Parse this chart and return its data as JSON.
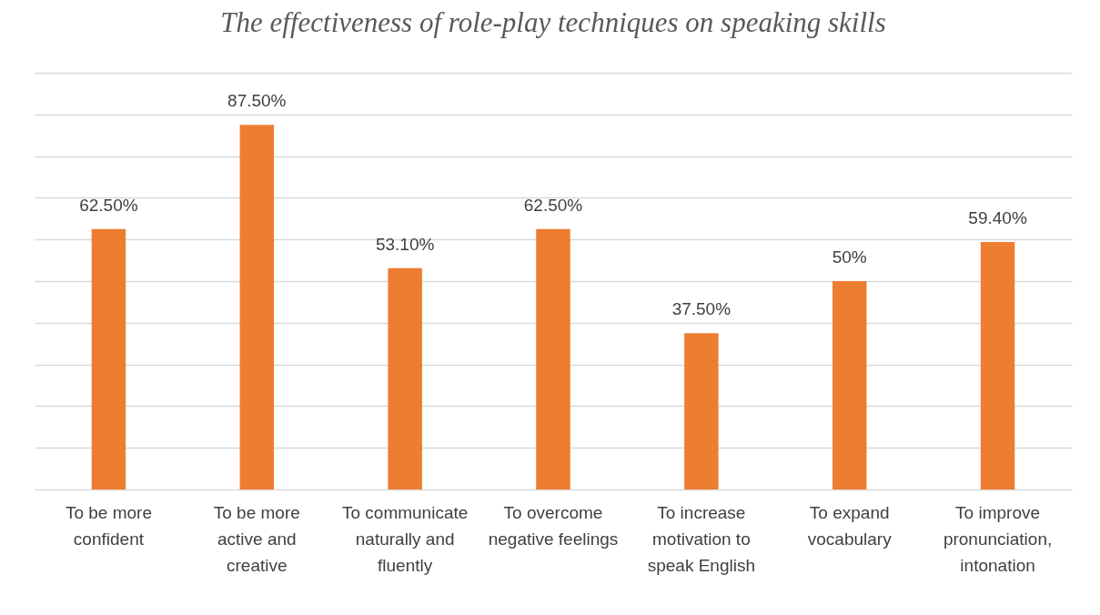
{
  "chart_data": {
    "type": "bar",
    "title": "The effectiveness of role-play techniques on speaking skills",
    "categories": [
      "To be more confident",
      "To be more active and creative",
      "To communicate naturally and fluently",
      "To overcome negative feelings",
      "To increase motivation to speak English",
      "To expand vocabulary",
      "To improve pronunciation, intonation"
    ],
    "values": [
      62.5,
      87.5,
      53.1,
      62.5,
      37.5,
      50,
      59.4
    ],
    "value_labels": [
      "62.50%",
      "87.50%",
      "53.10%",
      "62.50%",
      "37.50%",
      "50%",
      "59.40%"
    ],
    "color": "#ed7d31",
    "ylim": [
      0,
      100
    ],
    "yticks": [
      {
        "value": 0,
        "label": null
      },
      {
        "value": 10,
        "label": null
      },
      {
        "value": 20,
        "label": null
      },
      {
        "value": 30,
        "label": null
      },
      {
        "value": 40,
        "label": null
      },
      {
        "value": 50,
        "label": null
      },
      {
        "value": 60,
        "label": null
      },
      {
        "value": 70,
        "label": null
      },
      {
        "value": 80,
        "label": null
      },
      {
        "value": 90,
        "label": null
      },
      {
        "value": 100,
        "label": null
      }
    ],
    "grid": "y",
    "tick_labels": "x"
  }
}
